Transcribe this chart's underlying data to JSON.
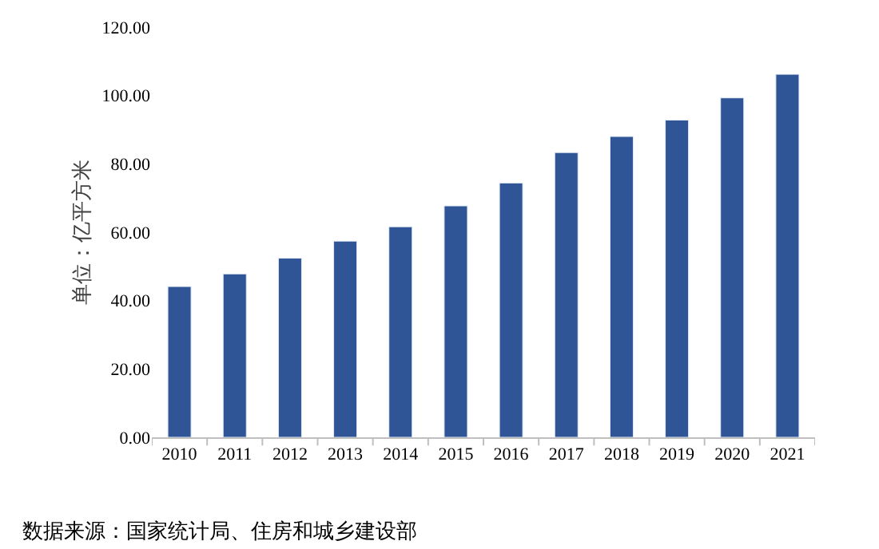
{
  "chart_data": {
    "type": "bar",
    "ylabel": "单位：亿平方米",
    "categories": [
      "2010",
      "2011",
      "2012",
      "2013",
      "2014",
      "2015",
      "2016",
      "2017",
      "2018",
      "2019",
      "2020",
      "2021"
    ],
    "values": [
      44.1,
      47.8,
      52.4,
      57.4,
      61.6,
      67.7,
      74.4,
      83.3,
      88.0,
      92.8,
      99.3,
      106.2
    ],
    "color": "#2f5597",
    "ylim": [
      0,
      120
    ],
    "yticks": [
      {
        "value": 0,
        "label": "0.00"
      },
      {
        "value": 20,
        "label": "20.00"
      },
      {
        "value": 40,
        "label": "40.00"
      },
      {
        "value": 60,
        "label": "60.00"
      },
      {
        "value": 80,
        "label": "80.00"
      },
      {
        "value": 100,
        "label": "100.00"
      },
      {
        "value": 120,
        "label": "120.00"
      }
    ],
    "annotations": [
      "数据来源：国家统计局、住房和城乡建设部"
    ]
  }
}
